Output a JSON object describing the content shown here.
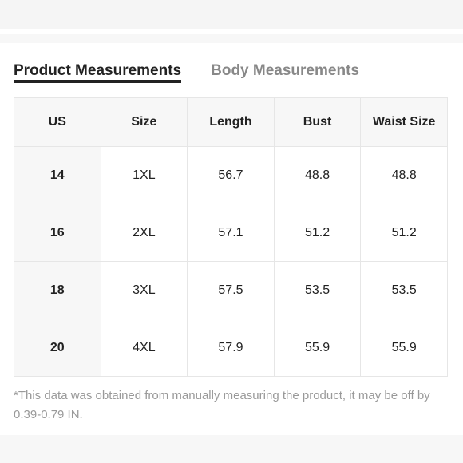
{
  "tabs": {
    "product": "Product Measurements",
    "body": "Body Measurements"
  },
  "table": {
    "headers": [
      "US",
      "Size",
      "Length",
      "Bust",
      "Waist Size"
    ],
    "rows": [
      [
        "14",
        "1XL",
        "56.7",
        "48.8",
        "48.8"
      ],
      [
        "16",
        "2XL",
        "57.1",
        "51.2",
        "51.2"
      ],
      [
        "18",
        "3XL",
        "57.5",
        "53.5",
        "53.5"
      ],
      [
        "20",
        "4XL",
        "57.9",
        "55.9",
        "55.9"
      ]
    ]
  },
  "note": "*This data was obtained from manually measuring the product, it may be off by 0.39-0.79 IN.",
  "colors": {
    "active_tab": "#222222",
    "inactive_tab": "#888888",
    "header_bg": "#f7f7f7",
    "border": "#e6e6e6",
    "note_text": "#999999"
  }
}
